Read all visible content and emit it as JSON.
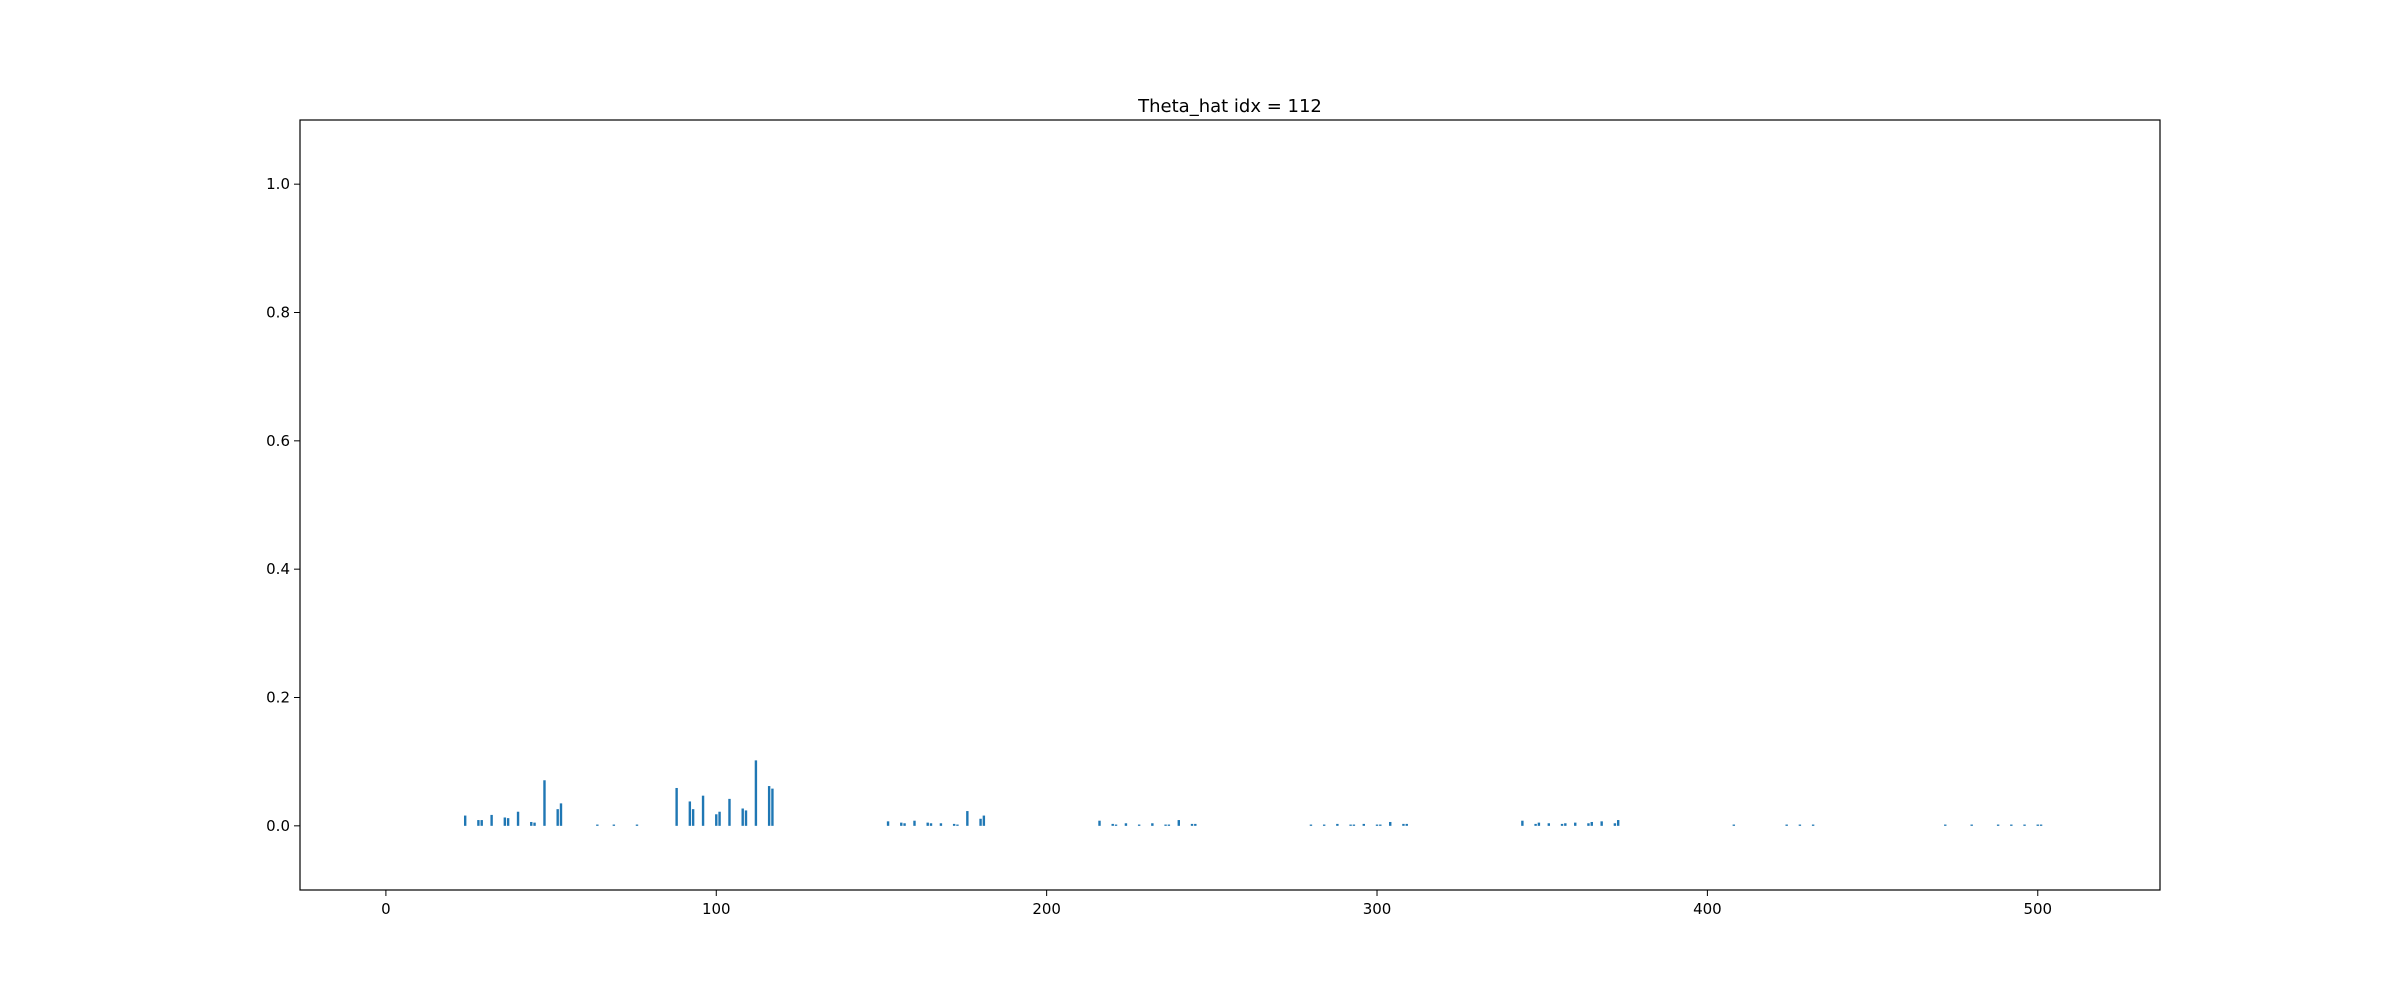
{
  "chart_data": {
    "type": "bar",
    "title": "Theta_hat idx = 112",
    "xlabel": "",
    "ylabel": "",
    "xlim": [
      -26,
      537
    ],
    "ylim": [
      -0.1,
      1.1
    ],
    "xticks": [
      0,
      100,
      200,
      300,
      400,
      500
    ],
    "xtick_labels": [
      "0",
      "100",
      "200",
      "300",
      "400",
      "500"
    ],
    "yticks": [
      0.0,
      0.2,
      0.4,
      0.6,
      0.8,
      1.0
    ],
    "ytick_labels": [
      "0.0",
      "0.2",
      "0.4",
      "0.6",
      "0.8",
      "1.0"
    ],
    "grid": false,
    "legend": "none",
    "bar_color": "#1f77b4",
    "x": [
      24,
      28,
      29,
      32,
      36,
      37,
      40,
      44,
      45,
      48,
      52,
      53,
      64,
      69,
      76,
      88,
      92,
      93,
      96,
      100,
      101,
      104,
      108,
      109,
      112,
      116,
      117,
      152,
      156,
      157,
      160,
      164,
      165,
      168,
      172,
      173,
      176,
      180,
      181,
      216,
      220,
      221,
      224,
      228,
      232,
      236,
      237,
      240,
      244,
      245,
      280,
      284,
      288,
      292,
      293,
      296,
      300,
      301,
      304,
      308,
      309,
      344,
      348,
      349,
      352,
      356,
      357,
      360,
      364,
      365,
      368,
      372,
      373,
      408,
      424,
      428,
      432,
      472,
      480,
      488,
      492,
      496,
      500,
      501
    ],
    "values": [
      0.016,
      0.009,
      0.009,
      0.017,
      0.013,
      0.012,
      0.022,
      0.006,
      0.005,
      0.071,
      0.026,
      0.035,
      0.002,
      0.002,
      0.002,
      0.059,
      0.038,
      0.026,
      0.047,
      0.018,
      0.022,
      0.042,
      0.027,
      0.024,
      0.102,
      0.062,
      0.058,
      0.007,
      0.005,
      0.004,
      0.008,
      0.005,
      0.004,
      0.004,
      0.003,
      0.002,
      0.023,
      0.011,
      0.016,
      0.008,
      0.003,
      0.002,
      0.004,
      0.002,
      0.004,
      0.002,
      0.002,
      0.009,
      0.003,
      0.003,
      0.002,
      0.002,
      0.003,
      0.002,
      0.002,
      0.003,
      0.002,
      0.002,
      0.006,
      0.003,
      0.003,
      0.008,
      0.003,
      0.005,
      0.004,
      0.003,
      0.004,
      0.005,
      0.004,
      0.006,
      0.007,
      0.004,
      0.009,
      0.002,
      0.002,
      0.002,
      0.002,
      0.002,
      0.002,
      0.002,
      0.002,
      0.002,
      0.002,
      0.002
    ]
  }
}
